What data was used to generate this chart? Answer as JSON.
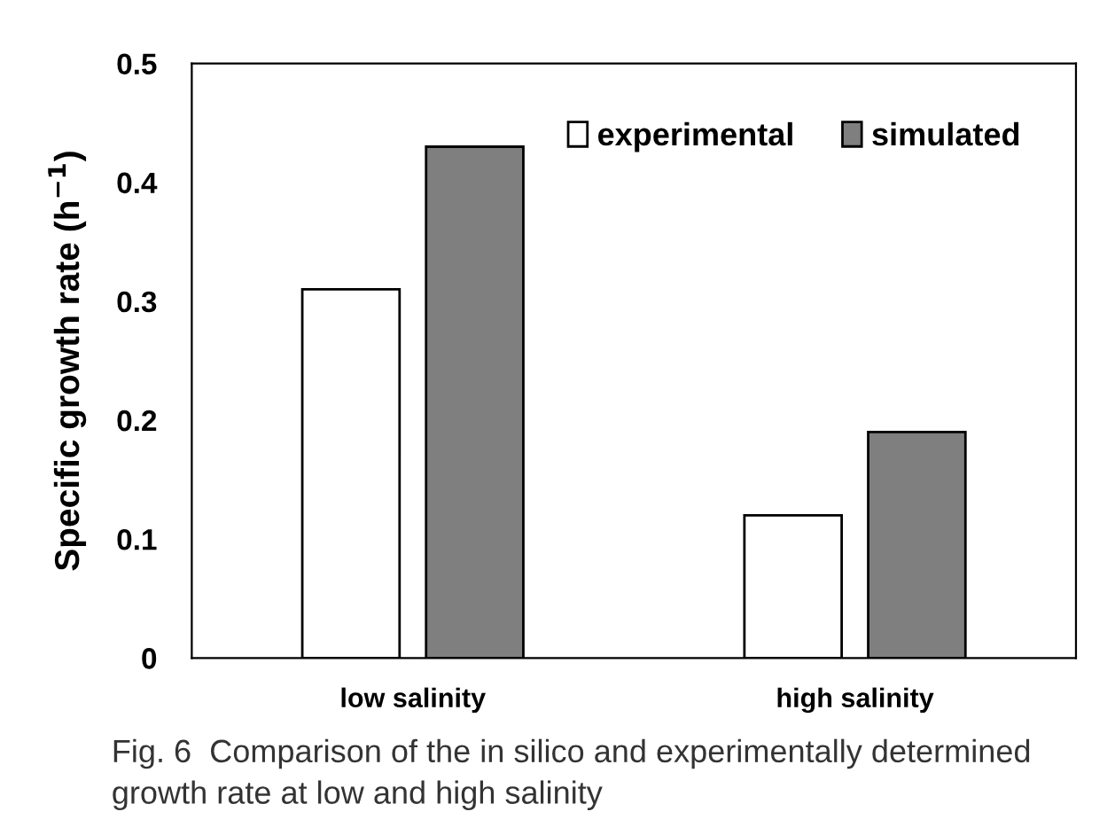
{
  "chart_data": {
    "type": "bar",
    "ylabel": "Specific growth rate (h$^{−1}$)",
    "categories": [
      "low salinity",
      "high salinity"
    ],
    "series": [
      {
        "name": "experimental",
        "color": "#ffffff",
        "values": [
          0.31,
          0.12
        ]
      },
      {
        "name": "simulated",
        "color": "#7f7f7f",
        "values": [
          0.43,
          0.19
        ]
      }
    ],
    "ylim": [
      0,
      0.5
    ],
    "yticks": [
      0,
      0.1,
      0.2,
      0.3,
      0.4,
      0.5
    ],
    "grid": false,
    "legend": "top right",
    "annotations": [
      "Fig. 6  Comparison of the in silico and experimentally determined growth rate at low and high salinity"
    ]
  }
}
